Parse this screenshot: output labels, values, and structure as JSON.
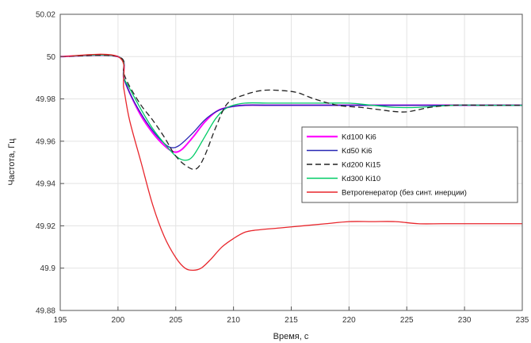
{
  "chart_data": {
    "type": "line",
    "xlabel": "Время, с",
    "ylabel": "Частота, Гц",
    "xlim": [
      195,
      235
    ],
    "ylim": [
      49.88,
      50.02
    ],
    "x_ticks": [
      195,
      200,
      205,
      210,
      215,
      220,
      225,
      230,
      235
    ],
    "y_ticks": [
      49.88,
      49.9,
      49.92,
      49.94,
      49.96,
      49.98,
      50,
      50.02
    ],
    "x_tick_labels": [
      "195",
      "200",
      "205",
      "210",
      "215",
      "220",
      "225",
      "230",
      "235"
    ],
    "y_tick_labels": [
      "49.88",
      "49.9",
      "49.92",
      "49.94",
      "49.96",
      "49.98",
      "50",
      "50.02"
    ],
    "grid": true,
    "legend_position": "right",
    "series": [
      {
        "name": "Kd100 Ki6",
        "color": "#ff00ff",
        "dash": "solid",
        "x": [
          195,
          200,
          200.5,
          201,
          202,
          203,
          204,
          204.8,
          205.5,
          206.5,
          207.5,
          208.5,
          209.5,
          211,
          213,
          215,
          218,
          221,
          224,
          227,
          230,
          235
        ],
        "y": [
          50,
          50,
          49.99,
          49.983,
          49.972,
          49.964,
          49.958,
          49.955,
          49.956,
          49.962,
          49.969,
          49.974,
          49.976,
          49.977,
          49.977,
          49.977,
          49.977,
          49.977,
          49.977,
          49.977,
          49.977,
          49.977
        ]
      },
      {
        "name": "Kd50 Ki6",
        "color": "#2828b4",
        "dash": "solid",
        "x": [
          195,
          200,
          200.5,
          201,
          202,
          203,
          204,
          204.6,
          205.3,
          206.5,
          207.5,
          208.5,
          209.5,
          211,
          213,
          215,
          218,
          221,
          224,
          227,
          230,
          235
        ],
        "y": [
          50,
          50,
          49.99,
          49.983,
          49.973,
          49.965,
          49.959,
          49.957,
          49.958,
          49.964,
          49.97,
          49.974,
          49.976,
          49.977,
          49.977,
          49.977,
          49.977,
          49.977,
          49.977,
          49.977,
          49.977,
          49.977
        ]
      },
      {
        "name": "Kd200 Ki15",
        "color": "#222222",
        "dash": "dashed",
        "x": [
          195,
          200,
          200.5,
          201,
          202,
          203,
          204,
          205,
          206,
          206.8,
          207.5,
          208.5,
          209.5,
          211,
          212.5,
          214,
          215.5,
          217,
          219,
          221,
          222.5,
          224,
          225.2,
          227,
          229,
          232,
          235
        ],
        "y": [
          50,
          50,
          49.992,
          49.986,
          49.977,
          49.97,
          49.962,
          49.953,
          49.948,
          49.947,
          49.953,
          49.967,
          49.978,
          49.982,
          49.984,
          49.984,
          49.983,
          49.98,
          49.977,
          49.976,
          49.975,
          49.974,
          49.974,
          49.976,
          49.977,
          49.977,
          49.977
        ]
      },
      {
        "name": "Kd300 Ki10",
        "color": "#00cc66",
        "dash": "solid",
        "x": [
          195,
          200,
          200.5,
          201,
          202,
          203,
          204,
          205,
          205.8,
          206.5,
          207.5,
          208.5,
          209.5,
          211,
          213,
          215,
          218,
          220,
          222,
          224,
          226,
          229,
          232,
          235
        ],
        "y": [
          50,
          50,
          49.99,
          49.985,
          49.975,
          49.966,
          49.959,
          49.953,
          49.951,
          49.953,
          49.962,
          49.971,
          49.976,
          49.978,
          49.978,
          49.978,
          49.978,
          49.978,
          49.977,
          49.976,
          49.976,
          49.977,
          49.977,
          49.977
        ]
      },
      {
        "name": "Ветрогенератор (без синт. инерции)",
        "color": "#e8262c",
        "dash": "solid",
        "x": [
          195,
          200,
          200.5,
          201,
          202,
          203,
          204,
          205,
          205.8,
          206.5,
          207.2,
          208,
          209,
          210,
          211,
          212,
          214,
          216,
          218,
          220,
          222,
          224,
          226,
          228,
          230,
          233,
          235
        ],
        "y": [
          50,
          50,
          49.985,
          49.97,
          49.95,
          49.93,
          49.915,
          49.905,
          49.9,
          49.899,
          49.9,
          49.904,
          49.91,
          49.914,
          49.917,
          49.918,
          49.919,
          49.92,
          49.921,
          49.922,
          49.922,
          49.922,
          49.921,
          49.921,
          49.921,
          49.921,
          49.921
        ]
      }
    ]
  }
}
